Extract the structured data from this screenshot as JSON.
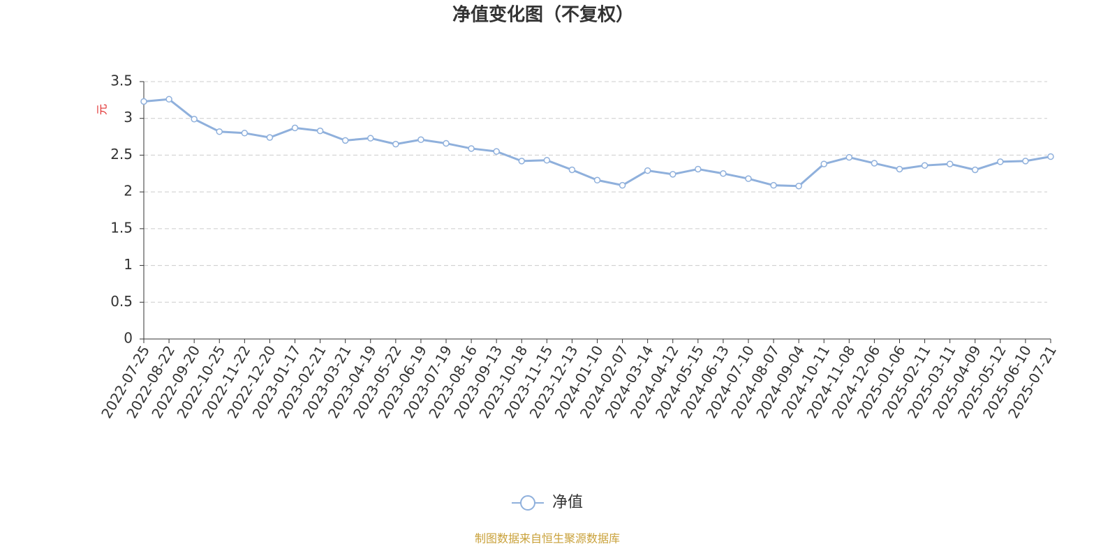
{
  "chart_data": {
    "type": "line",
    "title": "净值变化图（不复权）",
    "y_label": "元",
    "categories": [
      "2022-07-25",
      "2022-08-22",
      "2022-09-20",
      "2022-10-25",
      "2022-11-22",
      "2022-12-20",
      "2023-01-17",
      "2023-02-21",
      "2023-03-21",
      "2023-04-19",
      "2023-05-22",
      "2023-06-19",
      "2023-07-19",
      "2023-08-16",
      "2023-09-13",
      "2023-10-18",
      "2023-11-15",
      "2023-12-13",
      "2024-01-10",
      "2024-02-07",
      "2024-03-14",
      "2024-04-12",
      "2024-05-15",
      "2024-06-13",
      "2024-07-10",
      "2024-08-07",
      "2024-09-04",
      "2024-10-11",
      "2024-11-08",
      "2024-12-06",
      "2025-01-06",
      "2025-02-11",
      "2025-03-11",
      "2025-04-09",
      "2025-05-12",
      "2025-06-10",
      "2025-07-21"
    ],
    "series": [
      {
        "name": "净值",
        "color": "#8fb0dc",
        "values": [
          3.23,
          3.26,
          2.99,
          2.82,
          2.8,
          2.74,
          2.87,
          2.83,
          2.7,
          2.73,
          2.65,
          2.71,
          2.66,
          2.59,
          2.55,
          2.42,
          2.43,
          2.3,
          2.16,
          2.09,
          2.29,
          2.24,
          2.31,
          2.25,
          2.18,
          2.09,
          2.08,
          2.38,
          2.47,
          2.39,
          2.31,
          2.36,
          2.38,
          2.3,
          2.41,
          2.42,
          2.48
        ]
      }
    ],
    "ylim": [
      0,
      3.5
    ],
    "yticks": [
      0,
      0.5,
      1,
      1.5,
      2,
      2.5,
      3,
      3.5
    ],
    "grid": true,
    "legend": "bottom",
    "source": "制图数据来自恒生聚源数据库"
  }
}
